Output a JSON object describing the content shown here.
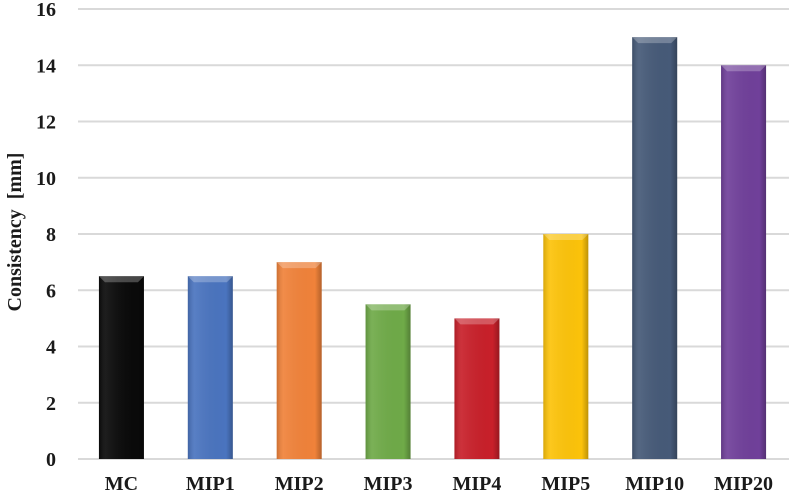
{
  "chart_data": {
    "type": "bar",
    "title": "",
    "xlabel": "",
    "ylabel": "Consistency  [mm]",
    "ylim": [
      0,
      16
    ],
    "yticks": [
      0,
      2,
      4,
      6,
      8,
      10,
      12,
      14,
      16
    ],
    "grid": true,
    "categories": [
      "MC",
      "MIP1",
      "MIP2",
      "MIP3",
      "MIP4",
      "MIP5",
      "MIP10",
      "MIP20"
    ],
    "values": [
      6.5,
      6.5,
      7,
      5.5,
      5,
      8,
      15,
      14
    ],
    "colors": [
      "#0a0a0a",
      "#4a74bf",
      "#f0823a",
      "#6faa48",
      "#c8202a",
      "#fcc30a",
      "#465a78",
      "#70409a"
    ]
  }
}
